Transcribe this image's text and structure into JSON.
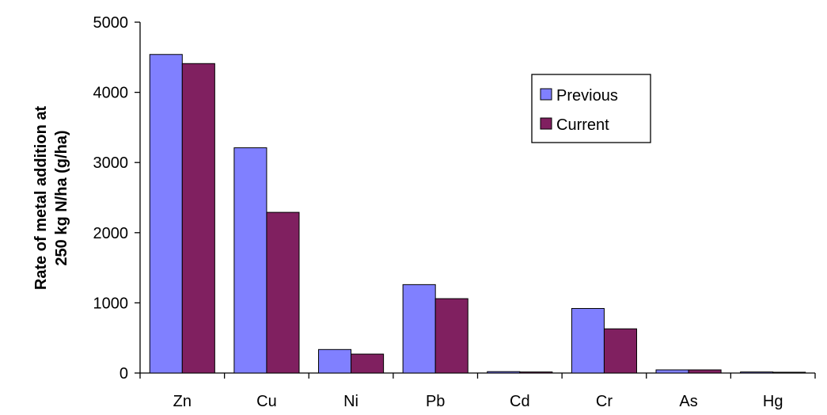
{
  "chart_data": {
    "type": "bar",
    "title": "",
    "xlabel": "",
    "ylabel": "Rate of metal addition at 250 kg N/ha (g/ha)",
    "ylabel_lines": [
      "Rate of metal addition at",
      "250 kg N/ha (g/ha)"
    ],
    "ylim": [
      0,
      5000
    ],
    "yticks": [
      0,
      1000,
      2000,
      3000,
      4000,
      5000
    ],
    "ytick_labels": [
      "0",
      "1000",
      "2000",
      "3000",
      "4000",
      "5000"
    ],
    "categories": [
      "Zn",
      "Cu",
      "Ni",
      "Pb",
      "Cd",
      "Cr",
      "As",
      "Hg"
    ],
    "series": [
      {
        "name": "Previous",
        "color": "#8080ff",
        "values": [
          4540,
          3210,
          335,
          1260,
          20,
          920,
          45,
          15
        ]
      },
      {
        "name": "Current",
        "color": "#802060",
        "values": [
          4410,
          2290,
          270,
          1060,
          15,
          630,
          45,
          5
        ]
      }
    ],
    "legend_position": "top-right",
    "grid": false
  }
}
